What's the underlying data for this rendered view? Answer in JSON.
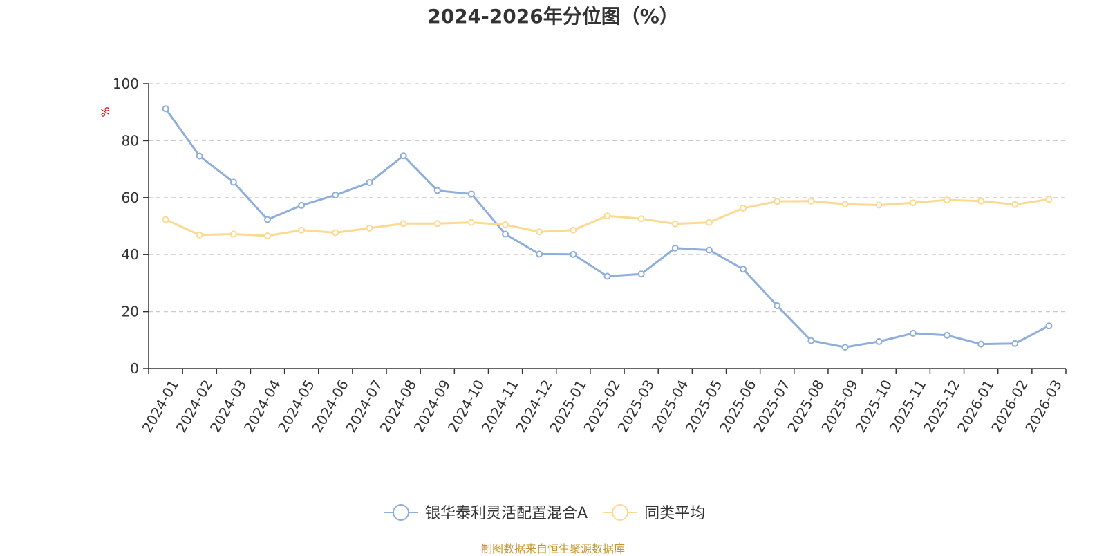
{
  "chart_data": {
    "type": "line",
    "title": "2024-2026年分位图（%）",
    "ylabel": "%",
    "ylim": [
      0,
      100
    ],
    "yticks": [
      0,
      20,
      40,
      60,
      80,
      100
    ],
    "grid": true,
    "legend_position": "bottom-center",
    "categories": [
      "2024-01",
      "2024-02",
      "2024-03",
      "2024-04",
      "2024-05",
      "2024-06",
      "2024-07",
      "2024-08",
      "2024-09",
      "2024-10",
      "2024-11",
      "2024-12",
      "2025-01",
      "2025-02",
      "2025-03",
      "2025-04",
      "2025-05",
      "2025-06",
      "2025-07",
      "2025-08",
      "2025-09",
      "2025-10",
      "2025-11",
      "2025-12",
      "2026-01",
      "2026-02",
      "2026-03"
    ],
    "series": [
      {
        "name": "银华泰利灵活配置混合A",
        "color": "#8eaedb",
        "values": [
          91.2,
          74.6,
          65.4,
          52.3,
          57.3,
          60.9,
          65.3,
          74.7,
          62.5,
          61.3,
          47.2,
          40.2,
          40.1,
          32.4,
          33.2,
          42.3,
          41.6,
          34.9,
          22.1,
          9.8,
          7.5,
          9.5,
          12.4,
          11.7,
          8.6,
          8.8,
          15.0
        ]
      },
      {
        "name": "同类平均",
        "color": "#fcd991",
        "values": [
          52.3,
          46.9,
          47.2,
          46.6,
          48.6,
          47.7,
          49.3,
          50.9,
          50.9,
          51.3,
          50.5,
          48.0,
          48.6,
          53.6,
          52.6,
          50.8,
          51.3,
          56.3,
          58.7,
          58.8,
          57.7,
          57.4,
          58.2,
          59.2,
          58.8,
          57.6,
          59.4
        ]
      }
    ]
  },
  "footer": {
    "source_note": "制图数据来自恒生聚源数据库"
  }
}
